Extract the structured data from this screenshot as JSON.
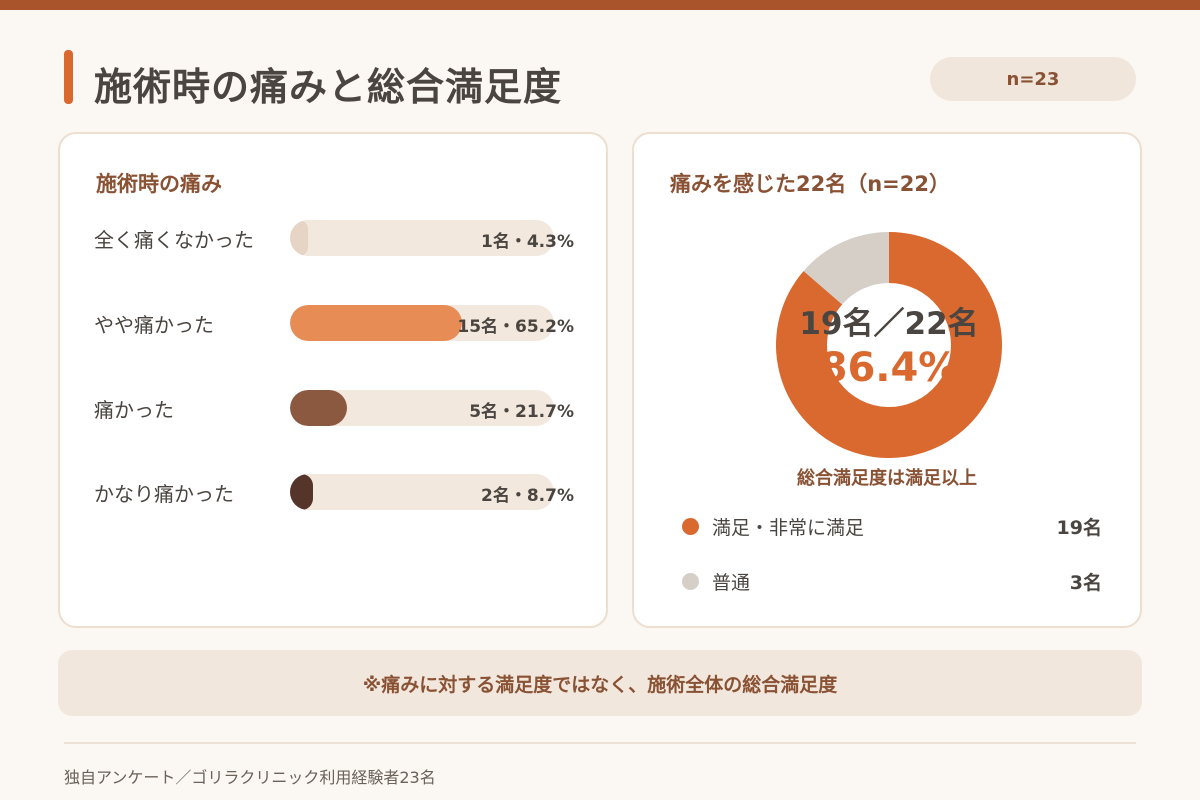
{
  "header": {
    "title": "施術時の痛みと総合満足度",
    "n_badge": "n=23"
  },
  "left_card": {
    "heading": "施術時の痛み",
    "bars": [
      {
        "label": "全く痛くなかった",
        "value_text": "1名・4.3%",
        "percent": 4.3,
        "color": "#e6d5c4"
      },
      {
        "label": "やや痛かった",
        "value_text": "15名・65.2%",
        "percent": 65.2,
        "color": "#e88c55"
      },
      {
        "label": "痛かった",
        "value_text": "5名・21.7%",
        "percent": 21.7,
        "color": "#8b5840"
      },
      {
        "label": "かなり痛かった",
        "value_text": "2名・8.7%",
        "percent": 8.7,
        "color": "#55352a"
      }
    ]
  },
  "right_card": {
    "heading": "痛みを感じた22名（n=22）",
    "center_count": "19名／22名",
    "center_percent": "86.4%",
    "caption": "総合満足度は満足以上",
    "legend": [
      {
        "label": "満足・非常に満足",
        "value": "19名",
        "color": "#d9692e"
      },
      {
        "label": "普通",
        "value": "3名",
        "color": "#d5cfc8"
      }
    ]
  },
  "note": "※痛みに対する満足度ではなく、施術全体の総合満足度",
  "source": "独自アンケート／ゴリラクリニック利用経験者23名",
  "colors": {
    "accent": "#d9692e",
    "brand_dark": "#a9542b",
    "heading": "#8a5234",
    "track": "#f2e8de"
  },
  "chart_data": [
    {
      "type": "bar",
      "orientation": "horizontal",
      "title": "施術時の痛み",
      "categories": [
        "全く痛くなかった",
        "やや痛かった",
        "痛かった",
        "かなり痛かった"
      ],
      "values": [
        1,
        15,
        5,
        2
      ],
      "percentages": [
        4.3,
        65.2,
        21.7,
        8.7
      ],
      "xlim": [
        0,
        100
      ]
    },
    {
      "type": "pie",
      "style": "donut",
      "title": "痛みを感じた22名（n=22）",
      "categories": [
        "満足・非常に満足",
        "普通"
      ],
      "values": [
        19,
        3
      ],
      "colors": [
        "#d9692e",
        "#d5cfc8"
      ],
      "center_text": [
        "19名／22名",
        "86.4%"
      ]
    }
  ]
}
